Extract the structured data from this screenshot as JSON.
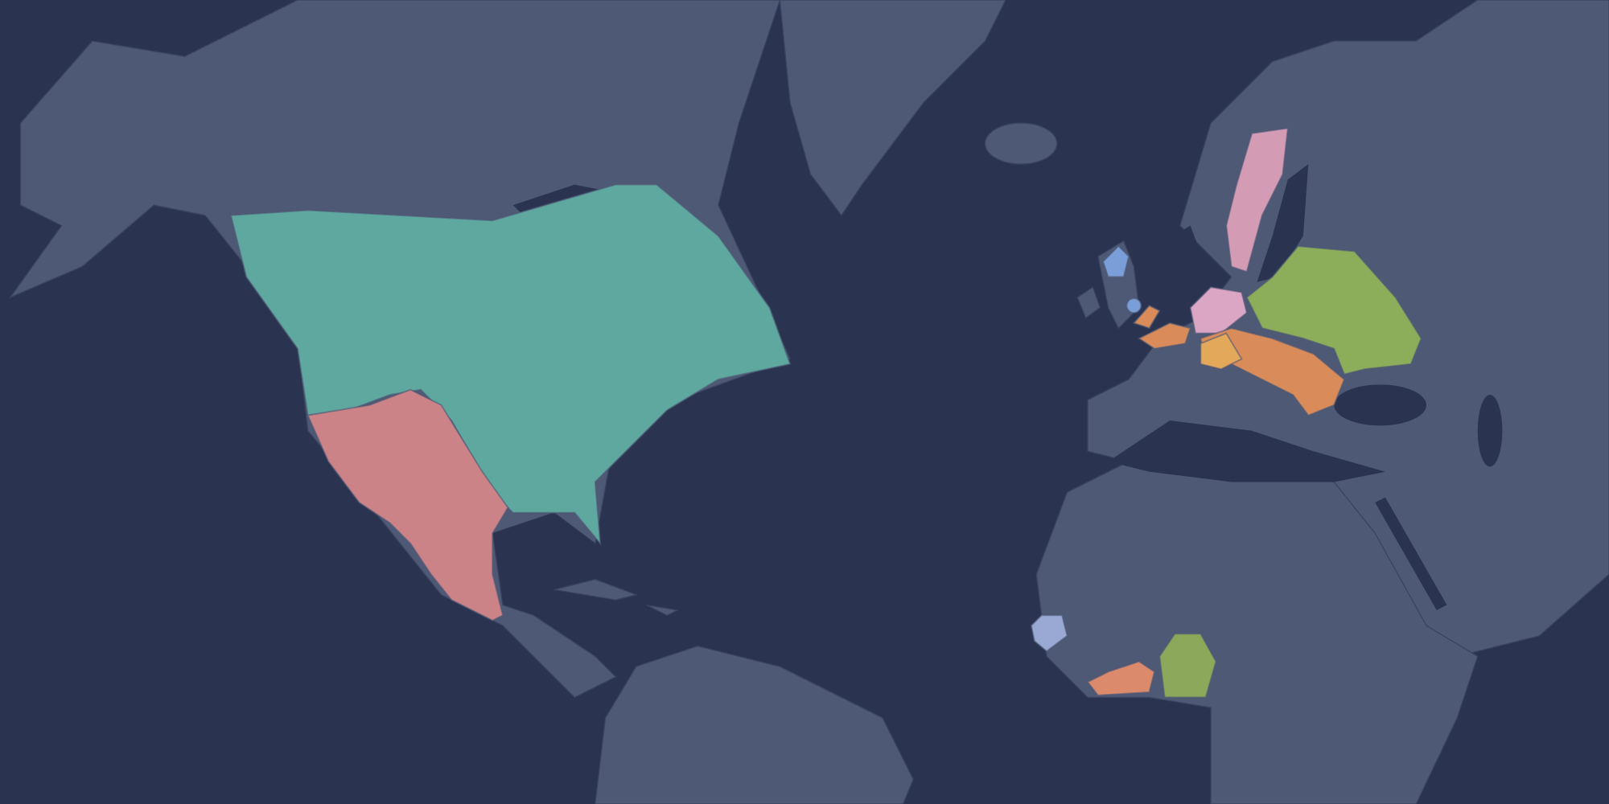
{
  "map": {
    "background": "#2a3450",
    "land": "#4e5975",
    "border": "#3a4462",
    "regions": [
      {
        "color": "#5fa8a0"
      },
      {
        "color": "#cc8388"
      },
      {
        "color": "#d49bb5"
      },
      {
        "color": "#dba6c4"
      },
      {
        "color": "#8cad5a"
      },
      {
        "color": "#d98b5a"
      },
      {
        "color": "#e3a85a"
      },
      {
        "color": "#d98b5a"
      },
      {
        "color": "#7a9fd8"
      },
      {
        "color": "#99a9d4"
      },
      {
        "color": "#dc8a6c"
      },
      {
        "color": "#8ca85a"
      }
    ]
  }
}
